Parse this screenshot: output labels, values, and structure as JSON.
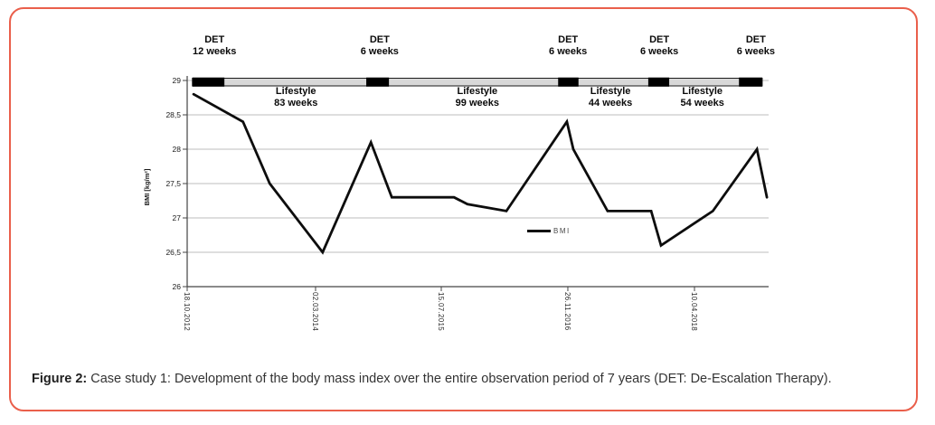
{
  "figure": {
    "accent_border_color": "#ea5f4b",
    "caption": {
      "prefix": "Figure 2:",
      "text": " Case study 1: Development of the body mass index over the entire observation period of 7 years (DET: De-Escalation Therapy)."
    }
  },
  "chart_data": {
    "type": "line",
    "title": "",
    "xlabel": "",
    "ylabel": "BMI [kg/m²]",
    "ylim": [
      26,
      29
    ],
    "grid": true,
    "legend": {
      "label": "BMI",
      "position": "center-inside"
    },
    "yticks": [
      {
        "value": 29,
        "label": "29"
      },
      {
        "value": 28.5,
        "label": "28,5"
      },
      {
        "value": 28,
        "label": "28"
      },
      {
        "value": 27.5,
        "label": "27,5"
      },
      {
        "value": 27,
        "label": "27"
      },
      {
        "value": 26.5,
        "label": "26,5"
      },
      {
        "value": 26,
        "label": "26"
      }
    ],
    "xticks": [
      {
        "label": "18.10.2012",
        "xf": 0.0
      },
      {
        "label": "02.03.2014",
        "xf": 0.2208
      },
      {
        "label": "15.07.2015",
        "xf": 0.437
      },
      {
        "label": "26.11.2016",
        "xf": 0.6547
      },
      {
        "label": "10.04.2018",
        "xf": 0.8725
      }
    ],
    "series": [
      {
        "name": "BMI",
        "color": "#0d0d0d",
        "points": [
          [
            0.011,
            28.8
          ],
          [
            0.096,
            28.4
          ],
          [
            0.142,
            27.5
          ],
          [
            0.233,
            26.5
          ],
          [
            0.316,
            28.1
          ],
          [
            0.352,
            27.3
          ],
          [
            0.459,
            27.3
          ],
          [
            0.482,
            27.2
          ],
          [
            0.549,
            27.1
          ],
          [
            0.653,
            28.4
          ],
          [
            0.664,
            28.0
          ],
          [
            0.723,
            27.1
          ],
          [
            0.798,
            27.1
          ],
          [
            0.815,
            26.6
          ],
          [
            0.904,
            27.1
          ],
          [
            0.98,
            28.0
          ],
          [
            0.997,
            27.3
          ]
        ]
      }
    ],
    "therapy_timeline": {
      "bar_color": "#d8d8d8",
      "det_color": "#000000",
      "bar_span_xf": [
        0.009,
        0.989
      ],
      "det_segments_xf": [
        [
          0.009,
          0.064
        ],
        [
          0.308,
          0.347
        ],
        [
          0.638,
          0.673
        ],
        [
          0.793,
          0.829
        ],
        [
          0.949,
          0.989
        ]
      ],
      "det_labels": [
        {
          "title": "DET",
          "duration": "12 weeks",
          "xf": 0.047
        },
        {
          "title": "DET",
          "duration": "6 weeks",
          "xf": 0.331
        },
        {
          "title": "DET",
          "duration": "6 weeks",
          "xf": 0.655
        },
        {
          "title": "DET",
          "duration": "6 weeks",
          "xf": 0.812
        },
        {
          "title": "DET",
          "duration": "6 weeks",
          "xf": 0.978
        }
      ],
      "lifestyle_labels": [
        {
          "title": "Lifestyle",
          "duration": "83 weeks",
          "xf": 0.187
        },
        {
          "title": "Lifestyle",
          "duration": "99 weeks",
          "xf": 0.499
        },
        {
          "title": "Lifestyle",
          "duration": "44 weeks",
          "xf": 0.728
        },
        {
          "title": "Lifestyle",
          "duration": "54 weeks",
          "xf": 0.886
        }
      ]
    }
  }
}
